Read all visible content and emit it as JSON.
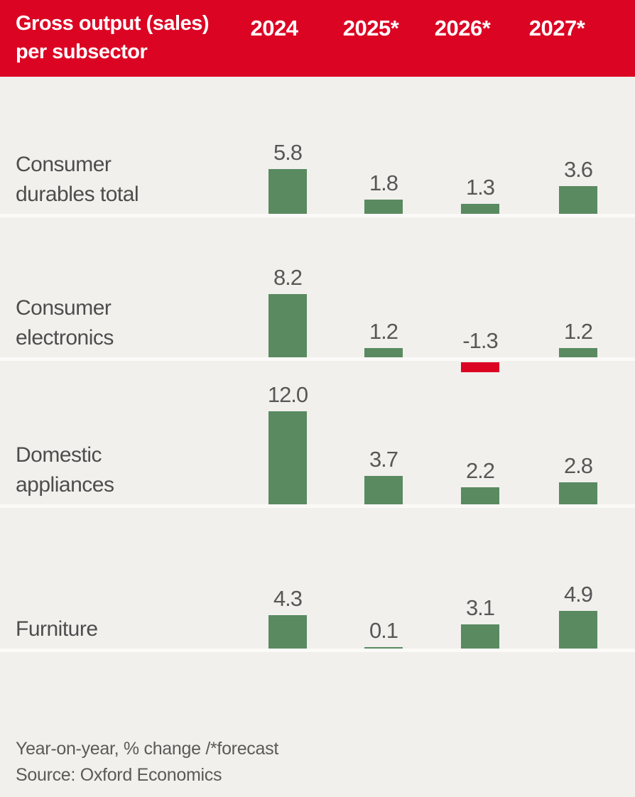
{
  "header": {
    "title": "Gross output (sales)\nper subsector",
    "columns": [
      "2024",
      "2025*",
      "2026*",
      "2027*"
    ]
  },
  "chart_data": {
    "type": "bar",
    "title": "Gross output (sales) per subsector",
    "unit": "Year-on-year, % change",
    "categories": [
      "2024",
      "2025*",
      "2026*",
      "2027*"
    ],
    "series": [
      {
        "name": "Consumer durables total",
        "values": [
          5.8,
          1.8,
          1.3,
          3.6
        ]
      },
      {
        "name": "Consumer electronics",
        "values": [
          8.2,
          1.2,
          -1.3,
          1.2
        ]
      },
      {
        "name": "Domestic appliances",
        "values": [
          12.0,
          3.7,
          2.2,
          2.8
        ]
      },
      {
        "name": "Furniture",
        "values": [
          4.3,
          0.1,
          3.1,
          4.9
        ]
      }
    ],
    "data_labels": true,
    "axes_shown": false,
    "forecast_note": "* = forecast"
  },
  "rows": [
    {
      "label": "Consumer\ndurables total",
      "values_display": [
        "5.8",
        "1.8",
        "1.3",
        "3.6"
      ]
    },
    {
      "label": "Consumer\nelectronics",
      "values_display": [
        "8.2",
        "1.2",
        "-1.3",
        "1.2"
      ]
    },
    {
      "label": "Domestic\nappliances",
      "values_display": [
        "12.0",
        "3.7",
        "2.2",
        "2.8"
      ]
    },
    {
      "label": "Furniture",
      "values_display": [
        "4.3",
        "0.1",
        "3.1",
        "4.9"
      ]
    }
  ],
  "footer": {
    "note": "Year-on-year, % change /*forecast",
    "source": "Source: Oxford Economics"
  },
  "colors": {
    "header_background": "#DC0423",
    "positive_bar": "#598A60",
    "negative_bar": "#DC0423",
    "page_background": "#F1F0ED",
    "separator": "#FBFAF8",
    "label_text": "#4D4D4D",
    "value_text": "#575757",
    "footer_text": "#5A5A58",
    "header_text": "#FFFFFF"
  }
}
